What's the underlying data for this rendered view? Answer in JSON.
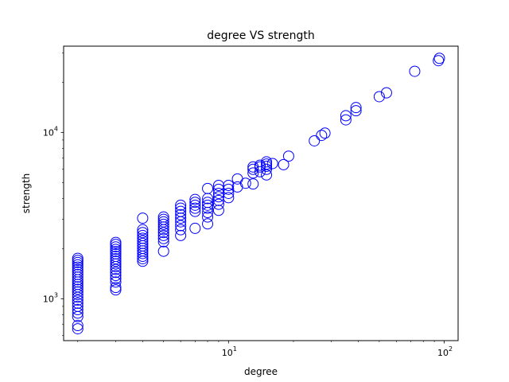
{
  "chart_data": {
    "type": "scatter",
    "title": "degree VS strength",
    "xlabel": "degree",
    "ylabel": "strength",
    "xscale": "log",
    "yscale": "log",
    "xlim": [
      1.72,
      116
    ],
    "ylim": [
      560,
      33000
    ],
    "grid": false,
    "legend": "none",
    "marker": "hollow circle",
    "marker_color": "#0000ff",
    "xticks": [
      {
        "value": 10,
        "base": "10",
        "exp": "1"
      },
      {
        "value": 100,
        "base": "10",
        "exp": "2"
      }
    ],
    "yticks": [
      {
        "value": 1000,
        "base": "10",
        "exp": "3"
      },
      {
        "value": 10000,
        "base": "10",
        "exp": "4"
      }
    ],
    "series": [
      {
        "points": [
          {
            "x": 2,
            "y": 660
          },
          {
            "x": 2,
            "y": 690
          },
          {
            "x": 2,
            "y": 780
          },
          {
            "x": 2,
            "y": 820
          },
          {
            "x": 2,
            "y": 860
          },
          {
            "x": 2,
            "y": 900
          },
          {
            "x": 2,
            "y": 940
          },
          {
            "x": 2,
            "y": 980
          },
          {
            "x": 2,
            "y": 1020
          },
          {
            "x": 2,
            "y": 1060
          },
          {
            "x": 2,
            "y": 1100
          },
          {
            "x": 2,
            "y": 1140
          },
          {
            "x": 2,
            "y": 1180
          },
          {
            "x": 2,
            "y": 1220
          },
          {
            "x": 2,
            "y": 1260
          },
          {
            "x": 2,
            "y": 1300
          },
          {
            "x": 2,
            "y": 1350
          },
          {
            "x": 2,
            "y": 1400
          },
          {
            "x": 2,
            "y": 1450
          },
          {
            "x": 2,
            "y": 1500
          },
          {
            "x": 2,
            "y": 1550
          },
          {
            "x": 2,
            "y": 1600
          },
          {
            "x": 2,
            "y": 1650
          },
          {
            "x": 2,
            "y": 1700
          },
          {
            "x": 2,
            "y": 1750
          },
          {
            "x": 3,
            "y": 1130
          },
          {
            "x": 3,
            "y": 1170
          },
          {
            "x": 3,
            "y": 1260
          },
          {
            "x": 3,
            "y": 1320
          },
          {
            "x": 3,
            "y": 1380
          },
          {
            "x": 3,
            "y": 1440
          },
          {
            "x": 3,
            "y": 1500
          },
          {
            "x": 3,
            "y": 1560
          },
          {
            "x": 3,
            "y": 1620
          },
          {
            "x": 3,
            "y": 1680
          },
          {
            "x": 3,
            "y": 1740
          },
          {
            "x": 3,
            "y": 1800
          },
          {
            "x": 3,
            "y": 1860
          },
          {
            "x": 3,
            "y": 1920
          },
          {
            "x": 3,
            "y": 1980
          },
          {
            "x": 3,
            "y": 2050
          },
          {
            "x": 3,
            "y": 2120
          },
          {
            "x": 3,
            "y": 2180
          },
          {
            "x": 4,
            "y": 1680
          },
          {
            "x": 4,
            "y": 1740
          },
          {
            "x": 4,
            "y": 1800
          },
          {
            "x": 4,
            "y": 1870
          },
          {
            "x": 4,
            "y": 1940
          },
          {
            "x": 4,
            "y": 2010
          },
          {
            "x": 4,
            "y": 2080
          },
          {
            "x": 4,
            "y": 2150
          },
          {
            "x": 4,
            "y": 2230
          },
          {
            "x": 4,
            "y": 2310
          },
          {
            "x": 4,
            "y": 2400
          },
          {
            "x": 4,
            "y": 2500
          },
          {
            "x": 4,
            "y": 2600
          },
          {
            "x": 4,
            "y": 3050
          },
          {
            "x": 5,
            "y": 1930
          },
          {
            "x": 5,
            "y": 2200
          },
          {
            "x": 5,
            "y": 2300
          },
          {
            "x": 5,
            "y": 2400
          },
          {
            "x": 5,
            "y": 2500
          },
          {
            "x": 5,
            "y": 2600
          },
          {
            "x": 5,
            "y": 2700
          },
          {
            "x": 5,
            "y": 2800
          },
          {
            "x": 5,
            "y": 2900
          },
          {
            "x": 5,
            "y": 3000
          },
          {
            "x": 5,
            "y": 3100
          },
          {
            "x": 6,
            "y": 2400
          },
          {
            "x": 6,
            "y": 2600
          },
          {
            "x": 6,
            "y": 2750
          },
          {
            "x": 6,
            "y": 2900
          },
          {
            "x": 6,
            "y": 3050
          },
          {
            "x": 6,
            "y": 3200
          },
          {
            "x": 6,
            "y": 3350
          },
          {
            "x": 6,
            "y": 3500
          },
          {
            "x": 6,
            "y": 3650
          },
          {
            "x": 7,
            "y": 2650
          },
          {
            "x": 7,
            "y": 3350
          },
          {
            "x": 7,
            "y": 3500
          },
          {
            "x": 7,
            "y": 3650
          },
          {
            "x": 7,
            "y": 3800
          },
          {
            "x": 7,
            "y": 3950
          },
          {
            "x": 8,
            "y": 2820
          },
          {
            "x": 8,
            "y": 3100
          },
          {
            "x": 8,
            "y": 3300
          },
          {
            "x": 8,
            "y": 3500
          },
          {
            "x": 8,
            "y": 3650
          },
          {
            "x": 8,
            "y": 3800
          },
          {
            "x": 8,
            "y": 4000
          },
          {
            "x": 8,
            "y": 4600
          },
          {
            "x": 9,
            "y": 3400
          },
          {
            "x": 9,
            "y": 3700
          },
          {
            "x": 9,
            "y": 3900
          },
          {
            "x": 9,
            "y": 4100
          },
          {
            "x": 9,
            "y": 4300
          },
          {
            "x": 9,
            "y": 4550
          },
          {
            "x": 9,
            "y": 4800
          },
          {
            "x": 10,
            "y": 4050
          },
          {
            "x": 10,
            "y": 4300
          },
          {
            "x": 10,
            "y": 4550
          },
          {
            "x": 10,
            "y": 4800
          },
          {
            "x": 11,
            "y": 4700
          },
          {
            "x": 11,
            "y": 5250
          },
          {
            "x": 12,
            "y": 4950
          },
          {
            "x": 13,
            "y": 4900
          },
          {
            "x": 13,
            "y": 5700
          },
          {
            "x": 13,
            "y": 6000
          },
          {
            "x": 13,
            "y": 6200
          },
          {
            "x": 14,
            "y": 5800
          },
          {
            "x": 14,
            "y": 6200
          },
          {
            "x": 14,
            "y": 6350
          },
          {
            "x": 15,
            "y": 5550
          },
          {
            "x": 15,
            "y": 6000
          },
          {
            "x": 15,
            "y": 6250
          },
          {
            "x": 15,
            "y": 6450
          },
          {
            "x": 15,
            "y": 6650
          },
          {
            "x": 16,
            "y": 6500
          },
          {
            "x": 18,
            "y": 6400
          },
          {
            "x": 19,
            "y": 7200
          },
          {
            "x": 25,
            "y": 8900
          },
          {
            "x": 27,
            "y": 9600
          },
          {
            "x": 28,
            "y": 9900
          },
          {
            "x": 35,
            "y": 11900
          },
          {
            "x": 35,
            "y": 12600
          },
          {
            "x": 39,
            "y": 13500
          },
          {
            "x": 39,
            "y": 14100
          },
          {
            "x": 50,
            "y": 16400
          },
          {
            "x": 54,
            "y": 17300
          },
          {
            "x": 73,
            "y": 23300
          },
          {
            "x": 94,
            "y": 27000
          },
          {
            "x": 95,
            "y": 27900
          }
        ]
      }
    ]
  }
}
